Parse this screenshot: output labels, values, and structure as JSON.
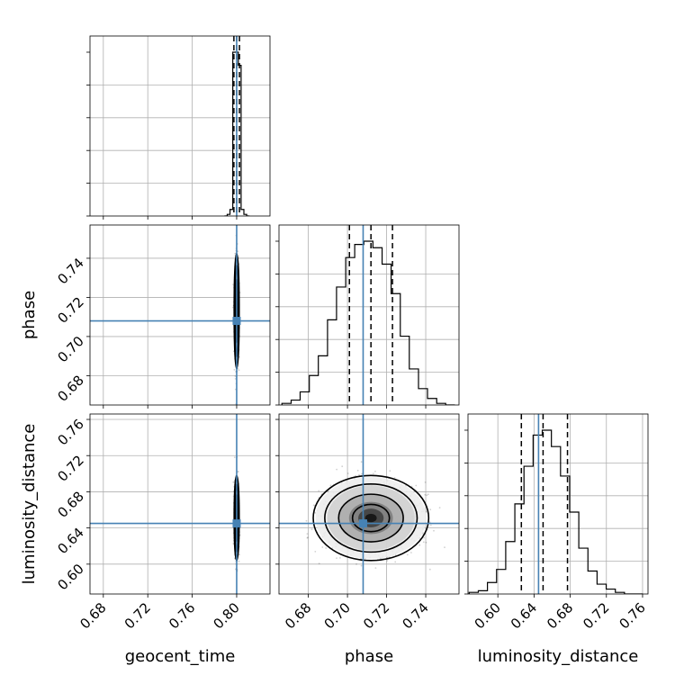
{
  "chart_data": {
    "type": "corner",
    "parameters": [
      "geocent_time",
      "phase",
      "luminosity_distance"
    ],
    "axis_labels": {
      "x": [
        "geocent_time",
        "phase",
        "luminosity_distance"
      ],
      "y": [
        "phase",
        "luminosity_distance"
      ]
    },
    "ranges": {
      "geocent_time": [
        0.668,
        0.83
      ],
      "phase": [
        0.665,
        0.757
      ],
      "luminosity_distance": [
        0.567,
        0.766
      ]
    },
    "ticks": {
      "geocent_time": [
        "0.68",
        "0.72",
        "0.76",
        "0.80"
      ],
      "phase": [
        "0.68",
        "0.70",
        "0.72",
        "0.74"
      ],
      "luminosity_distance": [
        "0.60",
        "0.64",
        "0.68",
        "0.72",
        "0.76"
      ]
    },
    "truths": {
      "geocent_time": 0.8,
      "phase": 0.708,
      "luminosity_distance": 0.645
    },
    "truth_color": "#4682b4",
    "quantiles": {
      "geocent_time": [
        0.7975,
        0.8,
        0.8025
      ],
      "phase": [
        0.701,
        0.712,
        0.723
      ],
      "luminosity_distance": [
        0.626,
        0.65,
        0.677
      ]
    },
    "histograms": {
      "geocent_time": {
        "edges": [
          0.789,
          0.7915,
          0.794,
          0.7965,
          0.799,
          0.8015,
          0.804,
          0.8065,
          0.809,
          0.8115
        ],
        "counts": [
          0,
          1,
          4,
          100,
          100,
          92,
          4,
          1,
          0
        ]
      },
      "phase": {
        "edges": [
          0.6665,
          0.6712,
          0.6758,
          0.6805,
          0.6851,
          0.6898,
          0.6944,
          0.6991,
          0.7037,
          0.7084,
          0.713,
          0.7177,
          0.7223,
          0.727,
          0.7316,
          0.7363,
          0.7409,
          0.7456,
          0.7502,
          0.7549
        ],
        "counts": [
          1,
          3,
          8,
          18,
          30,
          52,
          72,
          90,
          98,
          100,
          96,
          86,
          68,
          42,
          22,
          10,
          4,
          1,
          0
        ]
      },
      "luminosity_distance": {
        "edges": [
          0.5683,
          0.5784,
          0.5885,
          0.5986,
          0.6087,
          0.6188,
          0.6289,
          0.639,
          0.6491,
          0.6592,
          0.6693,
          0.6794,
          0.6895,
          0.6996,
          0.7097,
          0.7198,
          0.7299,
          0.74,
          0.7501,
          0.7602
        ],
        "counts": [
          1,
          2,
          7,
          15,
          32,
          55,
          78,
          97,
          100,
          90,
          72,
          50,
          28,
          14,
          6,
          3,
          1,
          0,
          0
        ]
      }
    },
    "scatter_summary": {
      "geocent_time_vs_phase": {
        "center": [
          0.8,
          0.713
        ],
        "spread": [
          0.0009,
          0.0118
        ]
      },
      "geocent_time_vs_luminosity_distance": {
        "center": [
          0.8,
          0.651
        ],
        "spread": [
          0.0009,
          0.0188
        ]
      },
      "phase_vs_luminosity_distance": {
        "center": [
          0.712,
          0.651
        ],
        "spread": [
          0.0118,
          0.0188
        ]
      }
    },
    "grid": true,
    "legend": "none"
  }
}
